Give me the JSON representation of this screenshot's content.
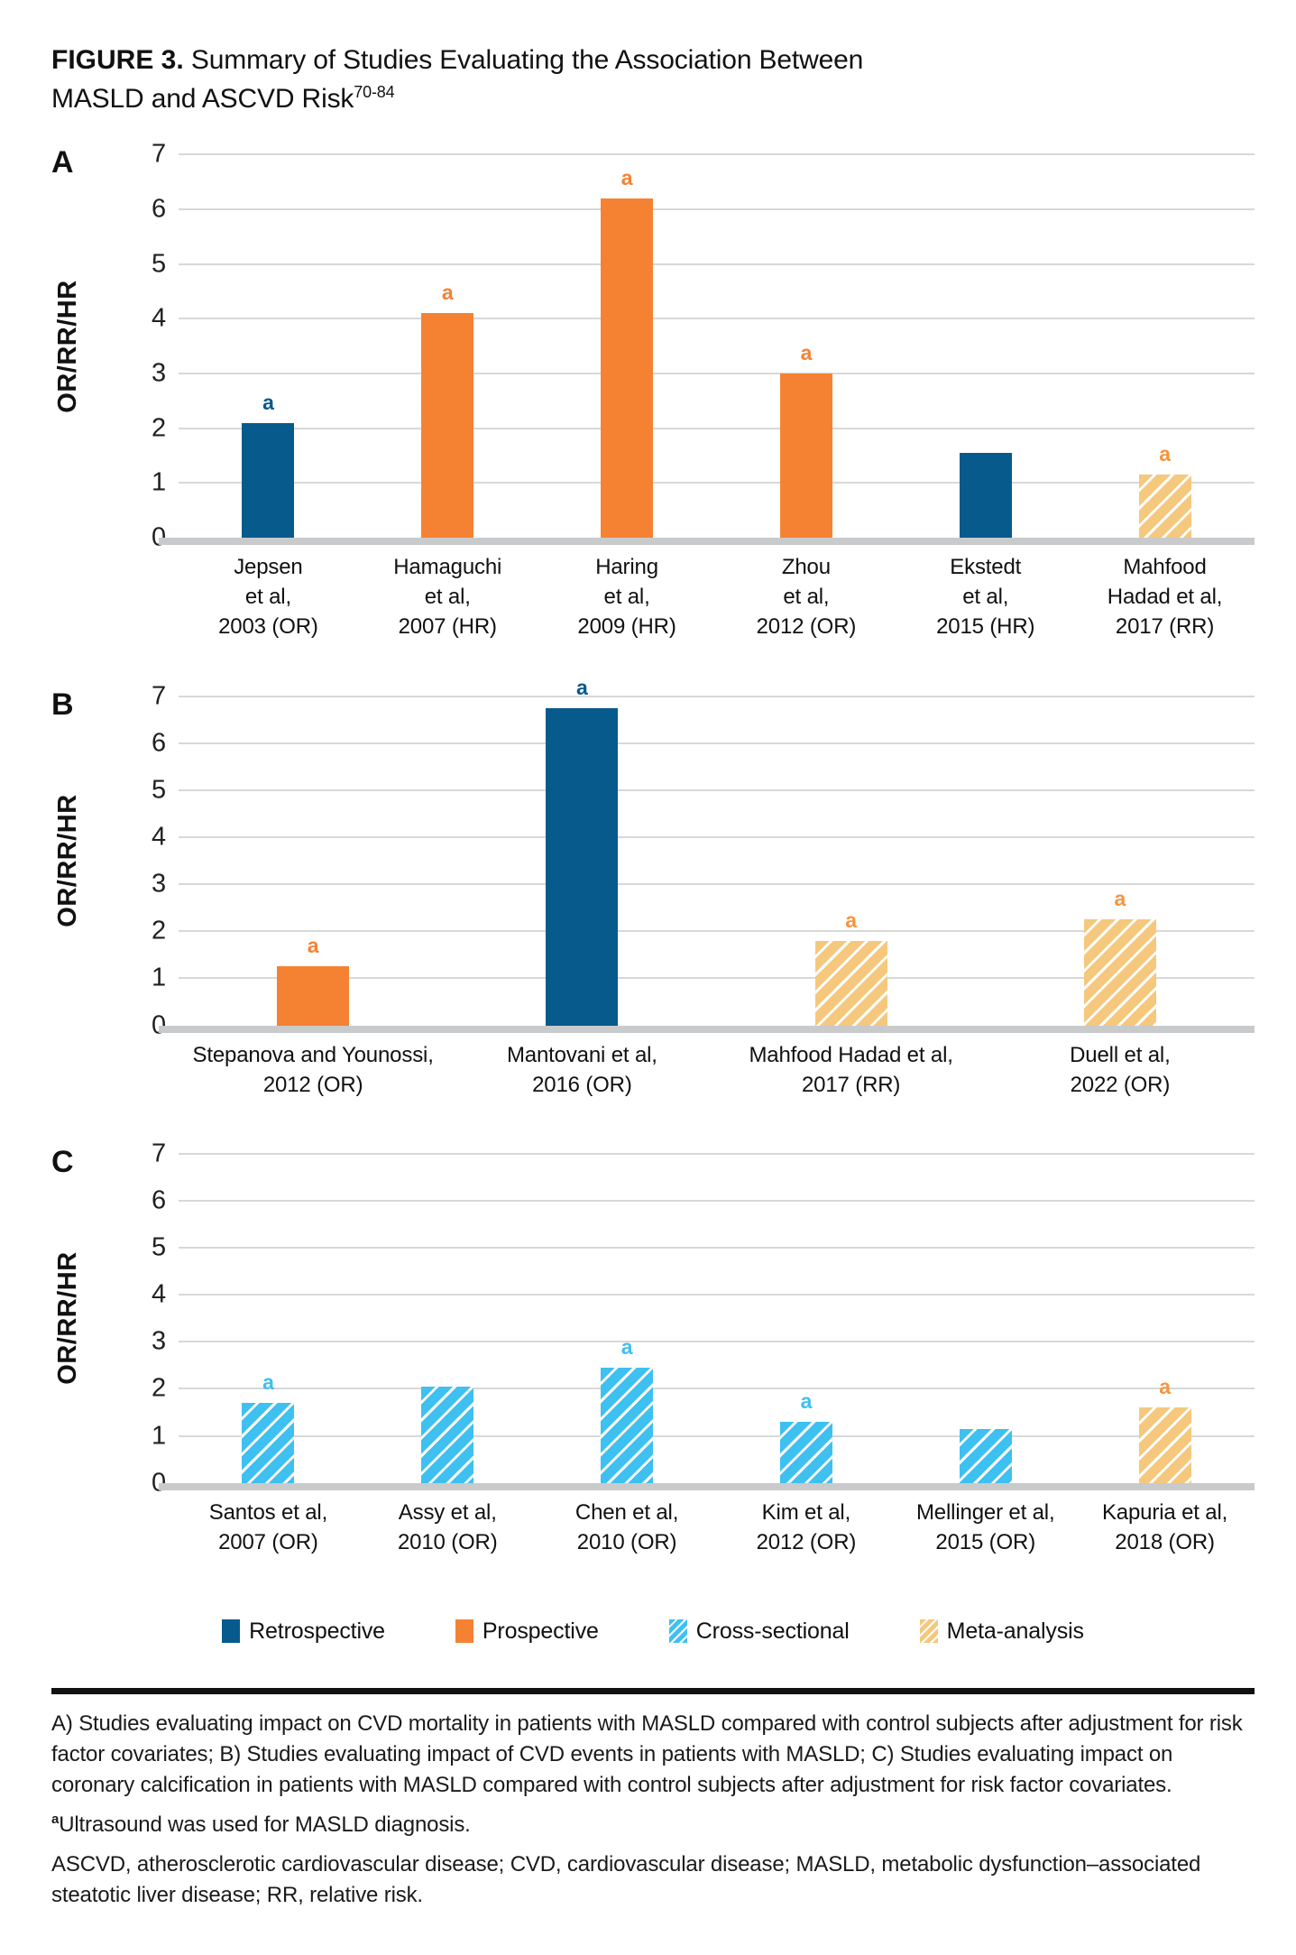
{
  "title": {
    "label": "FIGURE 3.",
    "text": " Summary of Studies Evaluating the Association Between MASLD and ASCVD Risk",
    "superscript": "70-84"
  },
  "categories": {
    "retrospective": {
      "color": "#075A8C",
      "pattern": "solid",
      "annotation_color": "#075A8C"
    },
    "prospective": {
      "color": "#F58233",
      "pattern": "solid",
      "annotation_color": "#F58233"
    },
    "cross_sectional": {
      "color": "#3EC0F0",
      "pattern": "hatched",
      "annotation_color": "#3EC0F0"
    },
    "meta_analysis": {
      "color": "#F5C87D",
      "pattern": "hatched",
      "annotation_color": "#F5953D"
    }
  },
  "legend": [
    {
      "label": "Retrospective",
      "category": "retrospective"
    },
    {
      "label": "Prospective",
      "category": "prospective"
    },
    {
      "label": "Cross-sectional",
      "category": "cross_sectional"
    },
    {
      "label": "Meta-analysis",
      "category": "meta_analysis"
    }
  ],
  "chart_data": [
    {
      "type": "bar",
      "panel": "A",
      "ylabel": "OR/RR/HR",
      "ylim": [
        0,
        7
      ],
      "yticks": [
        0,
        1,
        2,
        3,
        4,
        5,
        6,
        7
      ],
      "grid": true,
      "bars": [
        {
          "label": [
            "Jepsen",
            "et al,",
            "2003 (OR)"
          ],
          "value": 2.1,
          "category": "retrospective",
          "annotation": "a"
        },
        {
          "label": [
            "Hamaguchi",
            "et al,",
            "2007 (HR)"
          ],
          "value": 4.1,
          "category": "prospective",
          "annotation": "a"
        },
        {
          "label": [
            "Haring",
            "et al,",
            "2009 (HR)"
          ],
          "value": 6.2,
          "category": "prospective",
          "annotation": "a"
        },
        {
          "label": [
            "Zhou",
            "et al,",
            "2012 (OR)"
          ],
          "value": 3.0,
          "category": "prospective",
          "annotation": "a"
        },
        {
          "label": [
            "Ekstedt",
            "et al,",
            "2015 (HR)"
          ],
          "value": 1.55,
          "category": "retrospective",
          "annotation": ""
        },
        {
          "label": [
            "Mahfood",
            "Hadad et al,",
            "2017 (RR)"
          ],
          "value": 1.15,
          "category": "meta_analysis",
          "annotation": "a"
        }
      ]
    },
    {
      "type": "bar",
      "panel": "B",
      "ylabel": "OR/RR/HR",
      "ylim": [
        0,
        7
      ],
      "yticks": [
        0,
        1,
        2,
        3,
        4,
        5,
        6,
        7
      ],
      "grid": true,
      "bars": [
        {
          "label": [
            "Stepanova and Younossi,",
            "2012 (OR)"
          ],
          "value": 1.25,
          "category": "prospective",
          "annotation": "a"
        },
        {
          "label": [
            "Mantovani et al,",
            "2016 (OR)"
          ],
          "value": 6.75,
          "category": "retrospective",
          "annotation": "a"
        },
        {
          "label": [
            "Mahfood Hadad et al,",
            "2017 (RR)"
          ],
          "value": 1.8,
          "category": "meta_analysis",
          "annotation": "a"
        },
        {
          "label": [
            "Duell et al,",
            "2022 (OR)"
          ],
          "value": 2.25,
          "category": "meta_analysis",
          "annotation": "a"
        }
      ]
    },
    {
      "type": "bar",
      "panel": "C",
      "ylabel": "OR/RR/HR",
      "ylim": [
        0,
        7
      ],
      "yticks": [
        0,
        1,
        2,
        3,
        4,
        5,
        6,
        7
      ],
      "grid": true,
      "bars": [
        {
          "label": [
            "Santos et al,",
            "2007 (OR)"
          ],
          "value": 1.7,
          "category": "cross_sectional",
          "annotation": "a"
        },
        {
          "label": [
            "Assy et al,",
            "2010 (OR)"
          ],
          "value": 2.05,
          "category": "cross_sectional",
          "annotation": ""
        },
        {
          "label": [
            "Chen et al,",
            "2010 (OR)"
          ],
          "value": 2.45,
          "category": "cross_sectional",
          "annotation": "a"
        },
        {
          "label": [
            "Kim et al,",
            "2012 (OR)"
          ],
          "value": 1.3,
          "category": "cross_sectional",
          "annotation": "a"
        },
        {
          "label": [
            "Mellinger et al,",
            "2015 (OR)"
          ],
          "value": 1.15,
          "category": "cross_sectional",
          "annotation": ""
        },
        {
          "label": [
            "Kapuria et al,",
            "2018 (OR)"
          ],
          "value": 1.6,
          "category": "meta_analysis",
          "annotation": "a"
        }
      ]
    }
  ],
  "footnotes": {
    "panel_note": "A) Studies evaluating impact on CVD mortality in patients with MASLD compared with control subjects after adjustment for risk factor covariates; B) Studies evaluating impact of CVD events in patients with MASLD; C) Studies evaluating impact on coronary calcification in patients with MASLD compared with control subjects after adjustment for risk factor covariates.",
    "a_sup": "a",
    "a_text": "Ultrasound was used for MASLD diagnosis.",
    "abbrev": "ASCVD, atherosclerotic cardiovascular disease; CVD, cardiovascular disease; MASLD, metabolic dysfunction–associated steatotic liver disease; RR, relative risk."
  }
}
